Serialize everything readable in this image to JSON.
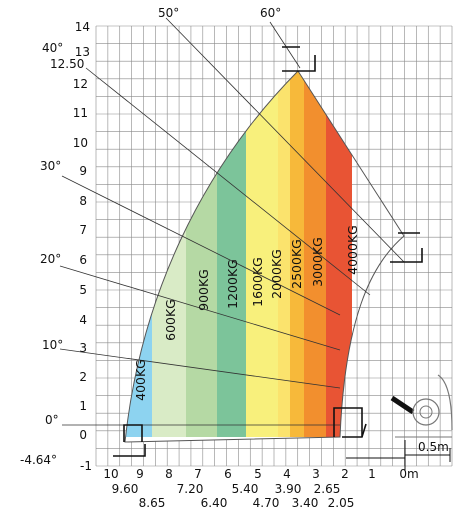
{
  "chart_data": {
    "type": "load-chart",
    "ylabel_ticks": [
      "14",
      "13",
      "12",
      "11",
      "10",
      "9",
      "8",
      "7",
      "6",
      "5",
      "4",
      "3",
      "2",
      "1",
      "0",
      "-1"
    ],
    "x_ticks_top": [
      "10",
      "9",
      "8",
      "7",
      "6",
      "5",
      "4",
      "3",
      "2",
      "1",
      "0m"
    ],
    "x_ticks_bottom_row1": [
      "9.60",
      "7.20",
      "5.40",
      "3.90",
      "2.65"
    ],
    "x_ticks_bottom_row2": [
      "8.65",
      "6.40",
      "4.70",
      "3.40",
      "2.05"
    ],
    "max_height_label": "12.50",
    "min_height_label": "-4.64°",
    "scale_label": "0.5m",
    "angles": [
      "0°",
      "10°",
      "20°",
      "30°",
      "40°",
      "50°",
      "60°"
    ],
    "zones": [
      {
        "label": "400KG",
        "color": "#8dd3f0"
      },
      {
        "label": "600KG",
        "color": "#d9ebc6"
      },
      {
        "label": "900KG",
        "color": "#b5d9a4"
      },
      {
        "label": "1200KG",
        "color": "#7cc49a"
      },
      {
        "label": "1600KG",
        "color": "#f8f07c"
      },
      {
        "label": "2000KG",
        "color": "#fbe36d"
      },
      {
        "label": "2500KG",
        "color": "#f7b93a"
      },
      {
        "label": "3000KG",
        "color": "#f28f2e"
      },
      {
        "label": "4000KG",
        "color": "#e85434"
      }
    ]
  }
}
